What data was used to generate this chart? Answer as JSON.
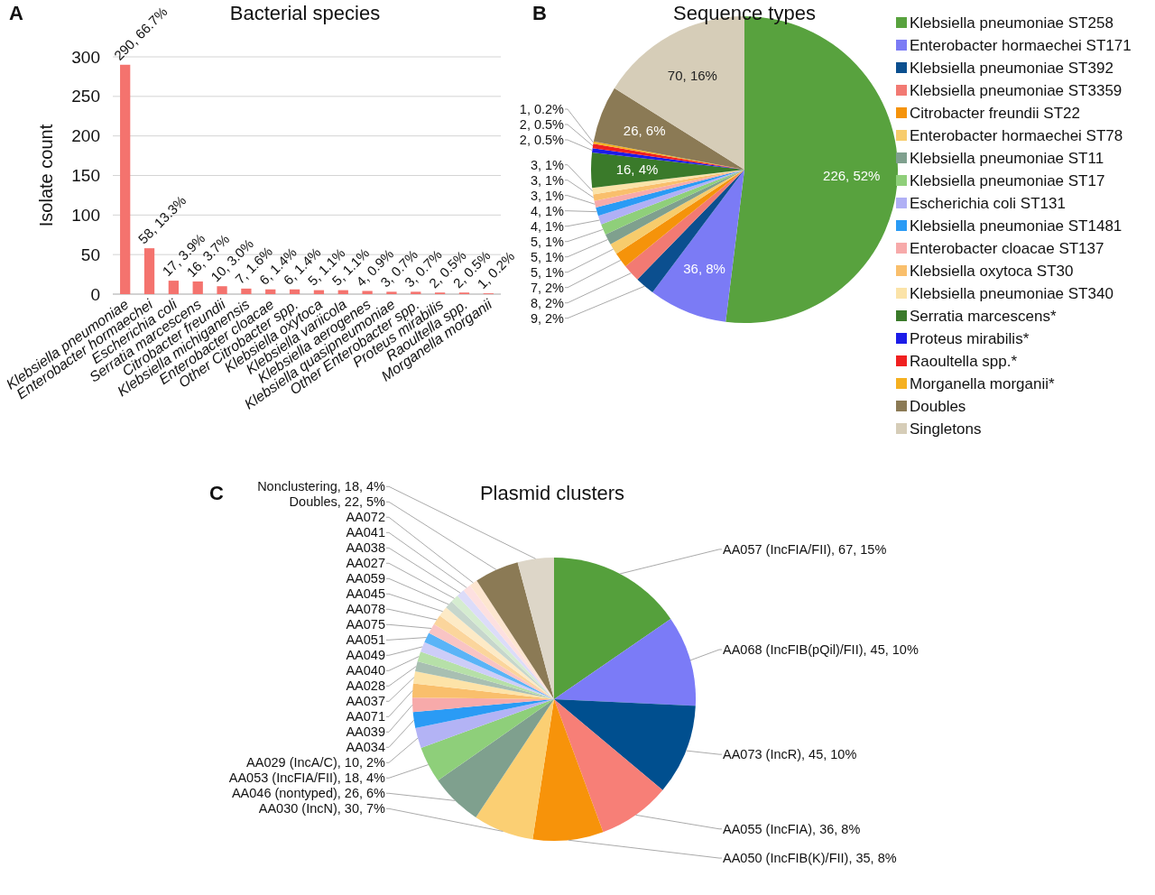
{
  "chart_data": [
    {
      "type": "bar",
      "title": "Bacterial species",
      "ylabel": "Isolate count",
      "annotations": [
        "A"
      ],
      "categories": [
        "Klebsiella pneumoniae",
        "Enterobacter hormaechei",
        "Escherichia coli",
        "Serratia marcescens",
        "Citrobacter freundii",
        "Klebsiella michiganensis",
        "Enterobacter cloacae",
        "Other Citrobacter spp.",
        "Klebsiella oxytoca",
        "Klebsiella variicola",
        "Klebsiella aerogenes",
        "Klebsiella quasipneumoniae",
        "Other Enterobacter spp.",
        "Proteus mirabilis",
        "Raoultella spp.",
        "Morganella morganii"
      ],
      "values": [
        290,
        58,
        17,
        16,
        10,
        7,
        6,
        6,
        5,
        5,
        4,
        3,
        3,
        2,
        2,
        1
      ],
      "value_labels": [
        "290, 66.7%",
        "58, 13.3%",
        "17, 3.9%",
        "16, 3.7%",
        "10, 3.0%",
        "7, 1.6%",
        "6, 1.4%",
        "6, 1.4%",
        "5, 1.1%",
        "5, 1.1%",
        "4, 0.9%",
        "3, 0.7%",
        "3, 0.7%",
        "2, 0.5%",
        "2, 0.5%",
        "1, 0.2%"
      ],
      "color": "#f4736e",
      "ylim": [
        0,
        300
      ],
      "yticks": [
        0,
        50,
        100,
        150,
        200,
        250,
        300
      ],
      "grid": "y"
    },
    {
      "type": "pie",
      "title": "Sequence types",
      "annotations": [
        "B"
      ],
      "legend": "right",
      "categories": [
        "Klebsiella pneumoniae ST258",
        "Enterobacter hormaechei ST171",
        "Klebsiella pneumoniae ST392",
        "Klebsiella pneumoniae ST3359",
        "Citrobacter freundii ST22",
        "Enterobacter hormaechei ST78",
        "Klebsiella pneumoniae ST11",
        "Klebsiella pneumoniae ST17",
        "Escherichia coli ST131",
        "Klebsiella pneumoniae ST1481",
        "Enterobacter cloacae ST137",
        "Klebsiella oxytoca ST30",
        "Klebsiella pneumoniae ST340",
        "Serratia marcescens*",
        "Proteus mirabilis*",
        "Raoultella spp.*",
        "Morganella morganii*",
        "Doubles",
        "Singletons"
      ],
      "values": [
        226,
        36,
        9,
        8,
        7,
        5,
        5,
        5,
        4,
        4,
        3,
        3,
        3,
        16,
        2,
        2,
        1,
        26,
        70
      ],
      "value_labels": [
        "226, 52%",
        "36, 8%",
        "9, 2%",
        "8, 2%",
        "7, 2%",
        "5, 1%",
        "5, 1%",
        "5, 1%",
        "4, 1%",
        "4, 1%",
        "3, 1%",
        "3, 1%",
        "3, 1%",
        "16, 4%",
        "2, 0.5%",
        "2, 0.5%",
        "1, 0.2%",
        "26, 6%",
        "70, 16%"
      ],
      "colors": [
        "#58a23e",
        "#7b7bf5",
        "#0b4f8f",
        "#f27a73",
        "#f5930a",
        "#f7cc6c",
        "#7fa08e",
        "#8fcf7a",
        "#b0b0f5",
        "#2a9bf5",
        "#f7aaaa",
        "#f9bf6c",
        "#fbe3a8",
        "#3a7a2a",
        "#1c1ce8",
        "#f02020",
        "#f5b020",
        "#8b7a55",
        "#d6cdb8"
      ]
    },
    {
      "type": "pie",
      "title": "Plasmid clusters",
      "annotations": [
        "C"
      ],
      "categories": [
        "AA057 (IncFIA/FII)",
        "AA068 (IncFIB(pQil)/FII)",
        "AA073 (IncR)",
        "AA055 (IncFIA)",
        "AA050 (IncFIB(K)/FII)",
        "AA030 (IncN)",
        "AA046 (nontyped)",
        "AA053 (IncFIA/FII)",
        "AA029 (IncA/C)",
        "AA034",
        "AA039",
        "AA071",
        "AA037",
        "AA028",
        "AA040",
        "AA049",
        "AA051",
        "AA075",
        "AA078",
        "AA045",
        "AA059",
        "AA027",
        "AA038",
        "AA041",
        "AA072",
        "Doubles",
        "Nonclustering"
      ],
      "values": [
        67,
        45,
        45,
        36,
        35,
        30,
        26,
        18,
        10,
        8,
        7,
        7,
        6,
        5,
        5,
        5,
        5,
        5,
        5,
        5,
        4,
        4,
        4,
        4,
        4,
        22,
        18
      ],
      "value_labels": [
        "67, 15%",
        "45, 10%",
        "45, 10%",
        "36, 8%",
        "35, 8%",
        "30, 7%",
        "26, 6%",
        "18, 4%",
        "10, 2%",
        null,
        null,
        null,
        null,
        null,
        null,
        null,
        null,
        null,
        null,
        null,
        null,
        null,
        null,
        null,
        null,
        "22, 5%",
        "18, 4%"
      ],
      "colors": [
        "#55a03c",
        "#7b7bf7",
        "#004f8f",
        "#f77f77",
        "#f7930a",
        "#fbcf73",
        "#7fa08e",
        "#8ecf7a",
        "#b3b3f5",
        "#2a9bf5",
        "#f7aaaa",
        "#f9bf6c",
        "#fde3a8",
        "#a8bfb2",
        "#b6e0a8",
        "#cdcdf8",
        "#5ab4f7",
        "#f9c4c4",
        "#fbd59c",
        "#fdeac6",
        "#c6d6cc",
        "#d5ecd0",
        "#dcdcf9",
        "#fde0e0",
        "#fde6d0",
        "#8b7a55",
        "#ddd6c8"
      ]
    }
  ]
}
